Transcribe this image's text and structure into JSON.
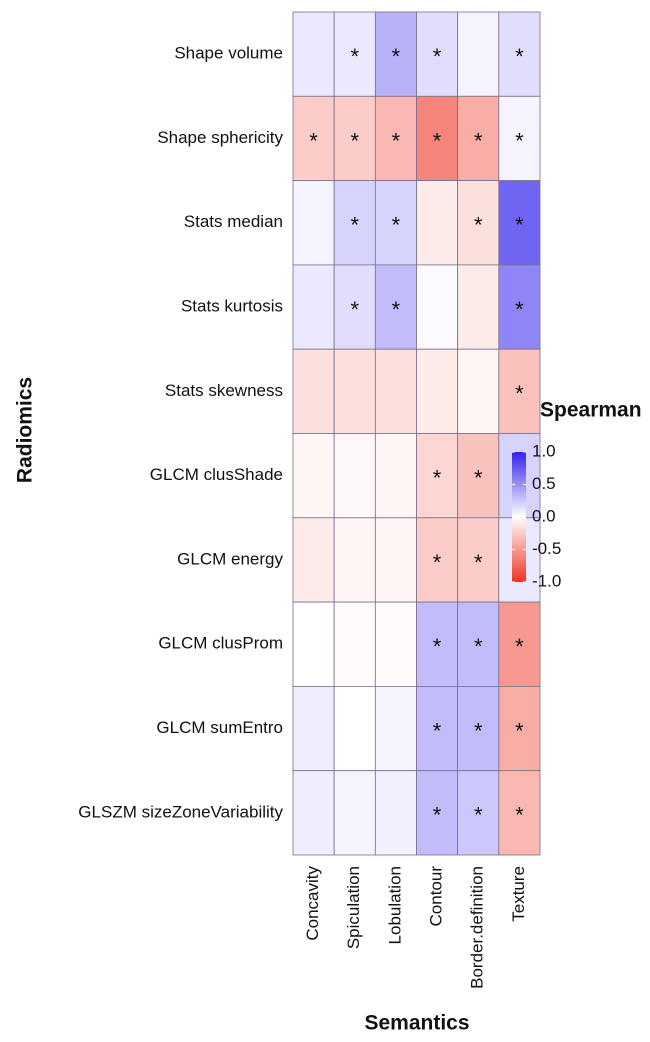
{
  "chart_data": {
    "type": "heatmap",
    "x_label": "Semantics",
    "y_label": "Radiomics",
    "columns": [
      "Concavity",
      "Spiculation",
      "Lobulation",
      "Contour",
      "Border.definition",
      "Texture"
    ],
    "rows": [
      "Shape volume",
      "Shape sphericity",
      "Stats median",
      "Stats kurtosis",
      "Stats skewness",
      "GLCM clusShade",
      "GLCM energy",
      "GLCM clusProm",
      "GLCM sumEntro",
      "GLSZM sizeZoneVariability"
    ],
    "values": [
      [
        0.1,
        0.1,
        0.35,
        0.15,
        0.05,
        0.15
      ],
      [
        -0.25,
        -0.25,
        -0.35,
        -0.6,
        -0.4,
        0.05
      ],
      [
        0.05,
        0.2,
        0.2,
        -0.1,
        -0.15,
        0.7
      ],
      [
        0.1,
        0.15,
        0.3,
        0.02,
        -0.1,
        0.55
      ],
      [
        -0.15,
        -0.15,
        -0.15,
        -0.1,
        -0.05,
        -0.3
      ],
      [
        -0.05,
        -0.03,
        -0.05,
        -0.2,
        -0.3,
        0.2
      ],
      [
        -0.1,
        -0.05,
        -0.05,
        -0.25,
        -0.25,
        0.1
      ],
      [
        0.0,
        -0.02,
        -0.02,
        0.3,
        0.3,
        -0.5
      ],
      [
        0.08,
        0.0,
        0.05,
        0.3,
        0.3,
        -0.4
      ],
      [
        0.08,
        0.05,
        0.07,
        0.3,
        0.25,
        -0.35
      ]
    ],
    "labels": [
      [
        null,
        "*",
        "*",
        "*",
        null,
        "*"
      ],
      [
        "*",
        "*",
        "*",
        "*",
        "*",
        "*"
      ],
      [
        null,
        "*",
        "*",
        null,
        "*",
        "*"
      ],
      [
        null,
        "*",
        "*",
        null,
        null,
        "*"
      ],
      [
        null,
        null,
        null,
        null,
        null,
        "*"
      ],
      [
        null,
        null,
        null,
        "*",
        "*",
        "*"
      ],
      [
        null,
        null,
        null,
        "*",
        "*",
        "*"
      ],
      [
        null,
        null,
        null,
        "*",
        "*",
        "*"
      ],
      [
        null,
        null,
        null,
        "*",
        "*",
        "*"
      ],
      [
        null,
        null,
        null,
        "*",
        "*",
        "*"
      ]
    ],
    "legend_title": "Spearman",
    "clim": [
      -1,
      1
    ],
    "cticks": [
      {
        "value": 1,
        "label": "1.0"
      },
      {
        "value": 0.5,
        "label": "0.5"
      },
      {
        "value": 0,
        "label": "0.0"
      },
      {
        "value": -0.5,
        "label": "-0.5"
      },
      {
        "value": -1,
        "label": "-1.0"
      }
    ],
    "color_low": "#ee3322",
    "color_mid": "#ffffff",
    "color_high": "#3322ee"
  }
}
